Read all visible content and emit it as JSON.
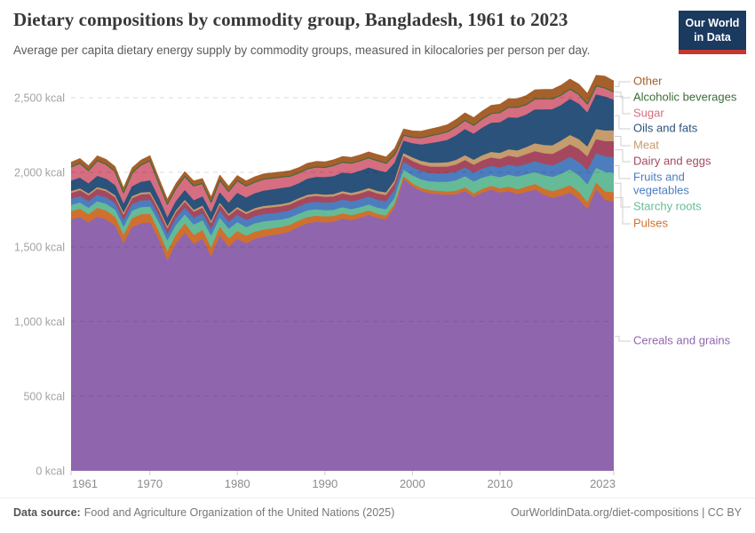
{
  "footer": {
    "source_label": "Data source:",
    "source_text": "Food and Agriculture Organization of the United Nations (2025)",
    "credit": "OurWorldinData.org/diet-compositions | CC BY"
  },
  "logo": {
    "line1": "Our World",
    "line2": "in Data"
  },
  "chart_data": {
    "type": "area",
    "stacked": true,
    "title": "Dietary compositions by commodity group, Bangladesh, 1961 to 2023",
    "subtitle": "Average per capita dietary energy supply by commodity groups, measured in kilocalories per person per day.",
    "unit": "kcal",
    "grid": "dashed",
    "legend_position": "right",
    "ylim": [
      0,
      2500
    ],
    "yticks": [
      0,
      500,
      1000,
      1500,
      2000,
      2500
    ],
    "ytick_labels": [
      "0 kcal",
      "500 kcal",
      "1,000 kcal",
      "1,500 kcal",
      "2,000 kcal",
      "2,500 kcal"
    ],
    "xticks": [
      1961,
      1970,
      1980,
      1990,
      2000,
      2010,
      2023
    ],
    "x": [
      1961,
      1962,
      1963,
      1964,
      1965,
      1966,
      1967,
      1968,
      1969,
      1970,
      1971,
      1972,
      1973,
      1974,
      1975,
      1976,
      1977,
      1978,
      1979,
      1980,
      1981,
      1982,
      1983,
      1984,
      1985,
      1986,
      1987,
      1988,
      1989,
      1990,
      1991,
      1992,
      1993,
      1994,
      1995,
      1996,
      1997,
      1998,
      1999,
      2000,
      2001,
      2002,
      2003,
      2004,
      2005,
      2006,
      2007,
      2008,
      2009,
      2010,
      2011,
      2012,
      2013,
      2014,
      2015,
      2016,
      2017,
      2018,
      2019,
      2020,
      2021,
      2022,
      2023
    ],
    "series": [
      {
        "id": "cereals",
        "name": "Cereals and grains",
        "color": "#8f66ad",
        "values": [
          1680,
          1695,
          1660,
          1700,
          1680,
          1640,
          1515,
          1630,
          1655,
          1660,
          1545,
          1400,
          1520,
          1590,
          1515,
          1550,
          1425,
          1570,
          1495,
          1550,
          1520,
          1550,
          1565,
          1575,
          1585,
          1600,
          1630,
          1655,
          1665,
          1660,
          1665,
          1685,
          1675,
          1690,
          1710,
          1690,
          1680,
          1760,
          1950,
          1900,
          1870,
          1855,
          1850,
          1845,
          1850,
          1870,
          1830,
          1860,
          1880,
          1860,
          1870,
          1850,
          1865,
          1880,
          1845,
          1825,
          1840,
          1860,
          1815,
          1745,
          1880,
          1810,
          1800
        ]
      },
      {
        "id": "pulses",
        "name": "Pulses",
        "color": "#d0702e",
        "values": [
          55,
          57,
          54,
          58,
          60,
          58,
          57,
          59,
          60,
          58,
          55,
          60,
          58,
          62,
          60,
          58,
          62,
          58,
          56,
          52,
          50,
          48,
          47,
          46,
          45,
          44,
          42,
          41,
          40,
          40,
          38,
          36,
          34,
          32,
          30,
          28,
          26,
          24,
          18,
          20,
          21,
          22,
          22,
          22,
          23,
          24,
          24,
          25,
          26,
          28,
          30,
          32,
          35,
          38,
          42,
          45,
          47,
          49,
          50,
          48,
          45,
          58,
          62
        ]
      },
      {
        "id": "starchy_roots",
        "name": "Starchy roots",
        "color": "#65bb97",
        "values": [
          41,
          42,
          44,
          43,
          45,
          48,
          55,
          50,
          48,
          48,
          60,
          75,
          65,
          60,
          70,
          65,
          80,
          62,
          65,
          60,
          58,
          56,
          55,
          52,
          50,
          48,
          46,
          45,
          43,
          42,
          41,
          41,
          40,
          40,
          40,
          41,
          42,
          42,
          44,
          55,
          57,
          58,
          60,
          65,
          70,
          75,
          80,
          75,
          70,
          75,
          80,
          85,
          82,
          80,
          90,
          95,
          100,
          105,
          110,
          120,
          100,
          132,
          130
        ]
      },
      {
        "id": "fruits_veg",
        "name": "Fruits and vegetables",
        "color": "#4c7dbe",
        "values": [
          43,
          43,
          44,
          44,
          44,
          44,
          44,
          45,
          45,
          45,
          45,
          45,
          46,
          46,
          46,
          46,
          46,
          47,
          47,
          48,
          48,
          48,
          49,
          49,
          49,
          49,
          50,
          50,
          50,
          50,
          51,
          51,
          52,
          52,
          52,
          53,
          53,
          54,
          52,
          55,
          56,
          56,
          57,
          57,
          58,
          59,
          60,
          62,
          63,
          65,
          67,
          68,
          70,
          72,
          75,
          78,
          82,
          85,
          90,
          95,
          98,
          103,
          105
        ]
      },
      {
        "id": "dairy_eggs",
        "name": "Dairy and eggs",
        "color": "#a5485f",
        "values": [
          39,
          39,
          39,
          40,
          40,
          40,
          39,
          40,
          40,
          40,
          39,
          38,
          39,
          39,
          40,
          40,
          39,
          40,
          40,
          40,
          40,
          40,
          40,
          40,
          40,
          40,
          40,
          40,
          40,
          40,
          40,
          41,
          41,
          41,
          42,
          42,
          42,
          42,
          41,
          42,
          43,
          44,
          45,
          46,
          48,
          50,
          52,
          54,
          56,
          58,
          60,
          62,
          65,
          68,
          72,
          76,
          80,
          84,
          88,
          92,
          95,
          102,
          108
        ]
      },
      {
        "id": "meat",
        "name": "Meat",
        "color": "#c69c6d",
        "values": [
          12,
          12,
          12,
          12,
          12,
          13,
          12,
          13,
          13,
          13,
          13,
          12,
          13,
          13,
          13,
          13,
          13,
          13,
          13,
          13,
          13,
          14,
          14,
          14,
          14,
          14,
          14,
          14,
          14,
          14,
          15,
          15,
          16,
          16,
          16,
          17,
          18,
          19,
          18,
          24,
          25,
          26,
          27,
          28,
          30,
          32,
          33,
          35,
          38,
          40,
          43,
          45,
          48,
          52,
          55,
          58,
          60,
          63,
          65,
          66,
          68,
          71,
          72
        ]
      },
      {
        "id": "oils_fats",
        "name": "Oils and fats",
        "color": "#2a527b",
        "values": [
          70,
          72,
          68,
          75,
          72,
          68,
          60,
          66,
          72,
          78,
          68,
          60,
          62,
          66,
          64,
          62,
          58,
          70,
          75,
          95,
          98,
          100,
          103,
          106,
          108,
          104,
          100,
          108,
          113,
          118,
          120,
          125,
          130,
          135,
          138,
          140,
          135,
          120,
          85,
          95,
          110,
          130,
          140,
          150,
          165,
          175,
          175,
          185,
          195,
          205,
          215,
          220,
          218,
          228,
          238,
          242,
          238,
          242,
          238,
          228,
          232,
          228,
          205
        ]
      },
      {
        "id": "sugar",
        "name": "Sugar",
        "color": "#d66d81",
        "values": [
          95,
          100,
          90,
          105,
          100,
          95,
          80,
          95,
          115,
          135,
          105,
          95,
          90,
          95,
          100,
          90,
          75,
          85,
          80,
          85,
          80,
          78,
          80,
          78,
          76,
          74,
          72,
          70,
          70,
          68,
          75,
          73,
          72,
          70,
          68,
          66,
          64,
          58,
          40,
          42,
          48,
          52,
          55,
          58,
          60,
          62,
          60,
          62,
          65,
          68,
          70,
          72,
          70,
          72,
          74,
          72,
          70,
          68,
          65,
          62,
          60,
          60,
          55
        ]
      },
      {
        "id": "alcohol",
        "name": "Alcoholic beverages",
        "color": "#3c6d39",
        "values": [
          1,
          1,
          1,
          1,
          1,
          1,
          1,
          1,
          1,
          1,
          1,
          1,
          1,
          1,
          1,
          1,
          1,
          1,
          1,
          1,
          1,
          1,
          1,
          1,
          1,
          1,
          1,
          1,
          1,
          1,
          1,
          1,
          1,
          1,
          1,
          1,
          1,
          1,
          1,
          1,
          1,
          1,
          1,
          1,
          1,
          1,
          1,
          1,
          1,
          1,
          1,
          1,
          1,
          1,
          1,
          1,
          1,
          1,
          1,
          1,
          1,
          1,
          1
        ]
      },
      {
        "id": "other",
        "name": "Other",
        "color": "#a5602b",
        "values": [
          30,
          30,
          30,
          31,
          31,
          31,
          30,
          31,
          32,
          32,
          31,
          30,
          31,
          31,
          32,
          32,
          32,
          33,
          33,
          33,
          33,
          34,
          34,
          34,
          34,
          35,
          35,
          35,
          36,
          36,
          37,
          37,
          38,
          38,
          39,
          40,
          40,
          41,
          40,
          42,
          43,
          44,
          45,
          46,
          48,
          49,
          50,
          51,
          53,
          55,
          56,
          58,
          59,
          60,
          62,
          63,
          65,
          66,
          68,
          69,
          70,
          78,
          73
        ]
      }
    ],
    "legend": [
      {
        "series": "other",
        "label": "Other"
      },
      {
        "series": "alcohol",
        "label": "Alcoholic beverages"
      },
      {
        "series": "sugar",
        "label": "Sugar"
      },
      {
        "series": "oils_fats",
        "label": "Oils and fats"
      },
      {
        "series": "meat",
        "label": "Meat"
      },
      {
        "series": "dairy_eggs",
        "label": "Dairy and eggs"
      },
      {
        "series": "fruits_veg",
        "label": "Fruits and vegetables"
      },
      {
        "series": "starchy_roots",
        "label": "Starchy roots"
      },
      {
        "series": "pulses",
        "label": "Pulses"
      },
      {
        "series": "cereals",
        "label": "Cereals and grains"
      }
    ]
  }
}
